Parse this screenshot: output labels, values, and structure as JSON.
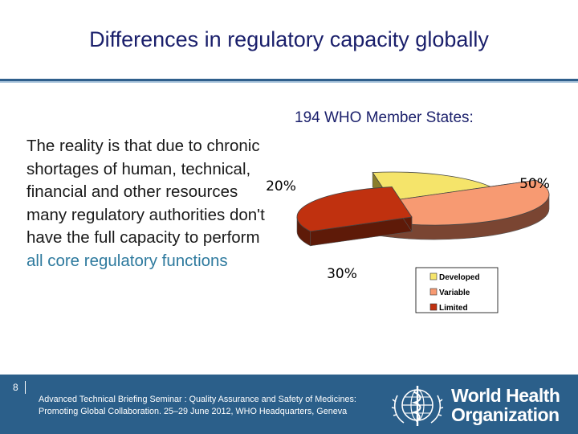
{
  "slide": {
    "title": "Differences in regulatory capacity globally",
    "subtitle": "194 WHO Member States:",
    "body_text_main": "The reality is that due to chronic shortages of human, technical, financial and other resources many regulatory authorities don't have the full capacity to perform ",
    "body_text_highlight": "all core regulatory functions",
    "page_number": "8",
    "footer_text": "Advanced Technical Briefing Seminar : Quality Assurance and Safety of Medicines: Promoting Global Collaboration. 25–29 June 2012, WHO Headquarters, Geneva",
    "org_name_line1": "World Health",
    "org_name_line2": "Organization"
  },
  "colors": {
    "title": "#1a1f6b",
    "accent_text": "#2e7a9e",
    "footer_bg": "#2b5f8a"
  },
  "chart_data": {
    "type": "pie",
    "style": "3d-exploded",
    "categories": [
      "Developed",
      "Variable",
      "Limited"
    ],
    "values": [
      20,
      50,
      30
    ],
    "labels": [
      "20%",
      "50%",
      "30%"
    ],
    "colors": [
      "#f5e46a",
      "#f79a72",
      "#c0310f"
    ],
    "side_colors": [
      "#8a7d2a",
      "#7a4532",
      "#5e1a08"
    ],
    "legend": "bottom-right"
  }
}
